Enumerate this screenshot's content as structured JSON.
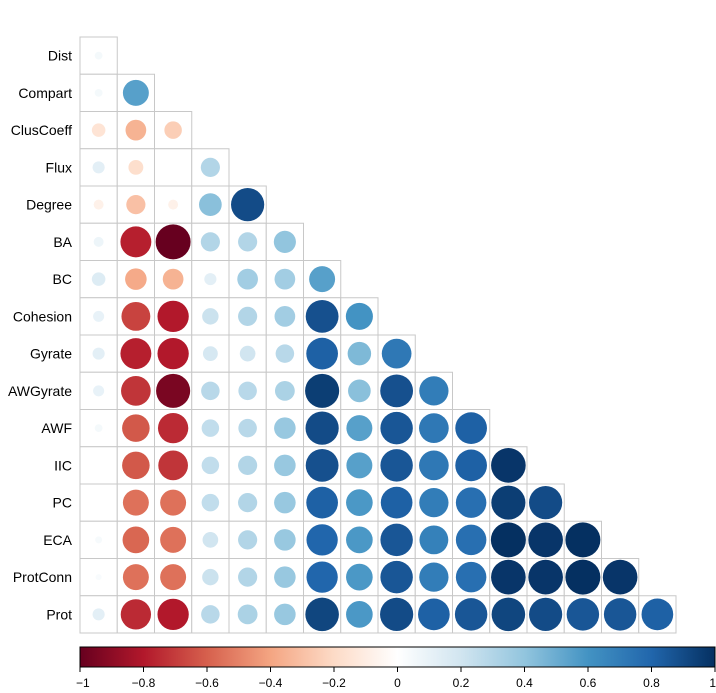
{
  "chart_data": {
    "type": "correlation-matrix",
    "layout": "lower-triangle",
    "variables": [
      "Dist",
      "Compart",
      "ClusCoeff",
      "Flux",
      "Degree",
      "BA",
      "BC",
      "Cohesion",
      "Gyrate",
      "AWGyrate",
      "AWF",
      "IIC",
      "PC",
      "ECA",
      "ProtConn",
      "Prot"
    ],
    "matrix": [
      [
        0.05
      ],
      [
        0.05,
        0.55
      ],
      [
        -0.15,
        -0.35,
        -0.25
      ],
      [
        0.12,
        -0.18,
        0.0,
        0.3
      ],
      [
        -0.08,
        -0.3,
        -0.08,
        0.42,
        0.9
      ],
      [
        0.08,
        -0.78,
        -1.0,
        0.3,
        0.3,
        0.4
      ],
      [
        0.15,
        -0.38,
        -0.35,
        0.12,
        0.35,
        0.35,
        0.55
      ],
      [
        0.1,
        -0.68,
        -0.8,
        0.22,
        0.3,
        0.35,
        0.88,
        0.6
      ],
      [
        0.12,
        -0.78,
        -0.8,
        0.18,
        0.2,
        0.28,
        0.82,
        0.45,
        0.72
      ],
      [
        0.1,
        -0.72,
        -0.95,
        0.28,
        0.28,
        0.32,
        0.95,
        0.42,
        0.88,
        0.7
      ],
      [
        0.05,
        -0.62,
        -0.75,
        0.25,
        0.28,
        0.38,
        0.9,
        0.55,
        0.86,
        0.72,
        0.82
      ],
      [
        0.0,
        -0.62,
        -0.72,
        0.25,
        0.3,
        0.38,
        0.88,
        0.55,
        0.86,
        0.72,
        0.82,
        0.98
      ],
      [
        0.0,
        -0.55,
        -0.55,
        0.25,
        0.3,
        0.38,
        0.82,
        0.58,
        0.82,
        0.7,
        0.76,
        0.95,
        0.9
      ],
      [
        0.04,
        -0.58,
        -0.55,
        0.2,
        0.3,
        0.38,
        0.8,
        0.58,
        0.86,
        0.68,
        0.76,
        1.0,
        0.98,
        1.0
      ],
      [
        0.03,
        -0.55,
        -0.55,
        0.22,
        0.3,
        0.38,
        0.8,
        0.58,
        0.86,
        0.7,
        0.76,
        0.98,
        0.98,
        1.0,
        0.98
      ],
      [
        0.12,
        -0.75,
        -0.8,
        0.28,
        0.32,
        0.38,
        0.92,
        0.58,
        0.9,
        0.82,
        0.86,
        0.92,
        0.9,
        0.86,
        0.86,
        0.82
      ]
    ],
    "colorbar": {
      "range": [
        -1,
        1
      ],
      "ticks": [
        -1,
        -0.8,
        -0.6,
        -0.4,
        -0.2,
        0,
        0.2,
        0.4,
        0.6,
        0.8,
        1
      ],
      "tick_labels": [
        "−1",
        "−0.8",
        "−0.6",
        "−0.4",
        "−0.2",
        "0",
        "0.2",
        "0.4",
        "0.6",
        "0.8",
        "1"
      ],
      "placement": "bottom"
    },
    "colors": {
      "negative_extreme": "#67001f",
      "neutral": "#ffffff",
      "positive_extreme": "#053061",
      "grid": "#c8c8c8"
    }
  }
}
